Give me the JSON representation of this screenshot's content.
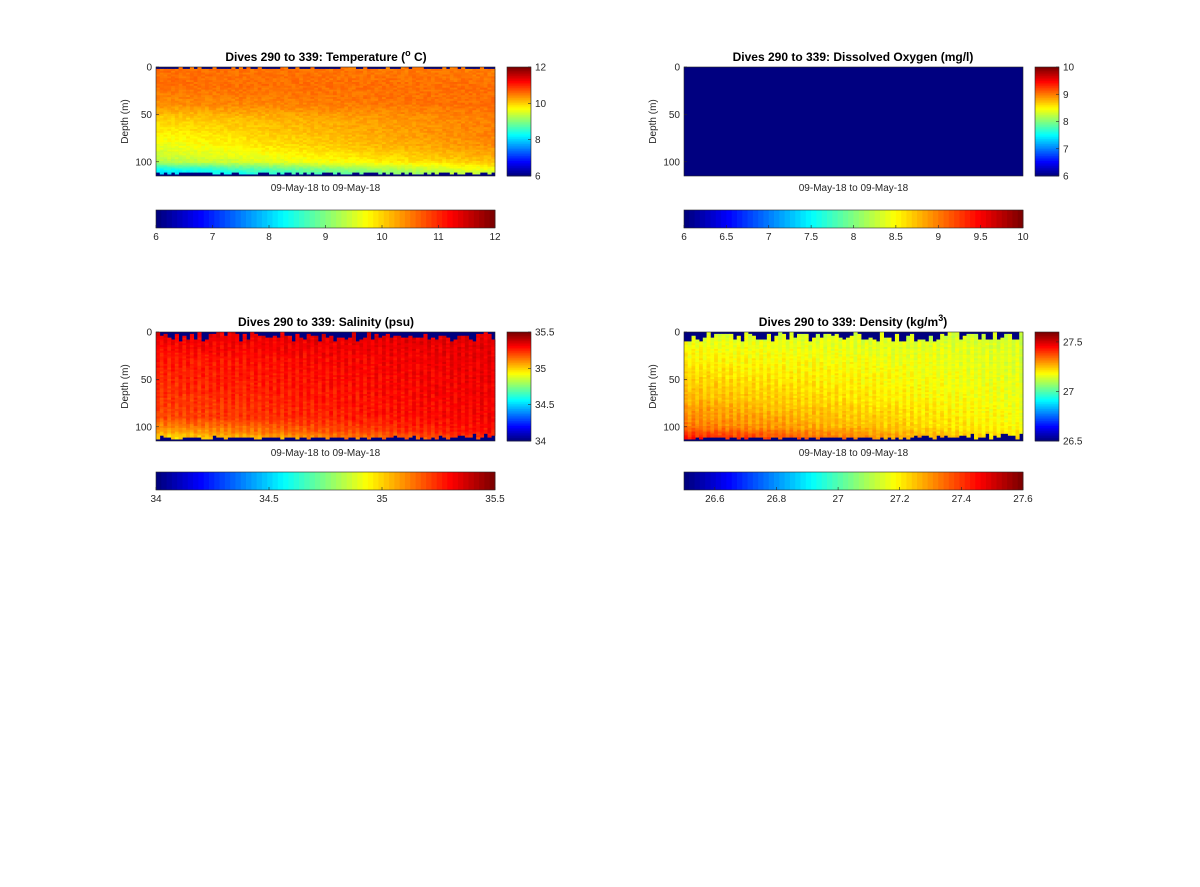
{
  "figure": {
    "background": "#ffffff",
    "colormap": "jet"
  },
  "chart_data": [
    {
      "type": "heatmap",
      "title": "Dives 290 to 339: Temperature (",
      "title_superscript": "o",
      "title_suffix": " C)",
      "xlabel": "09-May-18 to 09-May-18",
      "ylabel": "Depth (m)",
      "yticks": [
        "0",
        "50",
        "100"
      ],
      "ylim": [
        0,
        115
      ],
      "clim": [
        6,
        12
      ],
      "colorbar_ticks": [
        "6",
        "8",
        "10",
        "12"
      ],
      "hbar_ticks": [
        "6",
        "7",
        "8",
        "9",
        "10",
        "11",
        "12"
      ],
      "profile": {
        "depths": [
          0,
          20,
          40,
          55,
          70,
          85,
          100,
          108,
          115
        ],
        "early": [
          10.6,
          10.6,
          10.4,
          10.0,
          9.8,
          9.6,
          9.3,
          8.3,
          7.8
        ],
        "late": [
          10.5,
          10.6,
          10.6,
          10.5,
          10.5,
          10.4,
          10.1,
          9.7,
          9.4
        ]
      },
      "surface_gap_max_m": 3,
      "bottom_depth_max_m": 113,
      "fill_mode": "temperature"
    },
    {
      "type": "heatmap",
      "title": "Dives 290 to 339: Dissolved Oxygen (mg/l)",
      "title_superscript": "",
      "title_suffix": "",
      "xlabel": "09-May-18 to 09-May-18",
      "ylabel": "Depth (m)",
      "yticks": [
        "0",
        "50",
        "100"
      ],
      "ylim": [
        0,
        115
      ],
      "clim": [
        6,
        10
      ],
      "colorbar_ticks": [
        "6",
        "7",
        "8",
        "9",
        "10"
      ],
      "hbar_ticks": [
        "6",
        "6.5",
        "7",
        "7.5",
        "8",
        "8.5",
        "9",
        "9.5",
        "10"
      ],
      "uniform_value": 6,
      "fill_mode": "uniform"
    },
    {
      "type": "heatmap",
      "title": "Dives 290 to 339: Salinity (psu)",
      "title_superscript": "",
      "title_suffix": "",
      "xlabel": "09-May-18 to 09-May-18",
      "ylabel": "Depth (m)",
      "yticks": [
        "0",
        "50",
        "100"
      ],
      "ylim": [
        0,
        115
      ],
      "clim": [
        34,
        35.5
      ],
      "colorbar_ticks": [
        "34",
        "34.5",
        "35",
        "35.5"
      ],
      "hbar_ticks": [
        "34",
        "34.5",
        "35",
        "35.5"
      ],
      "profile": {
        "depths": [
          0,
          10,
          30,
          60,
          90,
          105,
          115
        ],
        "early": [
          35.32,
          35.3,
          35.25,
          35.22,
          35.18,
          35.05,
          34.9
        ],
        "late": [
          35.33,
          35.33,
          35.32,
          35.31,
          35.3,
          35.28,
          35.2
        ]
      },
      "surface_gap_max_m": 10,
      "bottom_depth_max_m": 113,
      "fill_mode": "striped"
    },
    {
      "type": "heatmap",
      "title": "Dives 290 to 339: Density (kg/m",
      "title_superscript": "3",
      "title_suffix": ")",
      "xlabel": "09-May-18 to 09-May-18",
      "ylabel": "Depth (m)",
      "yticks": [
        "0",
        "50",
        "100"
      ],
      "ylim": [
        0,
        115
      ],
      "clim": [
        26.5,
        27.6
      ],
      "colorbar_ticks": [
        "26.5",
        "27",
        "27.5"
      ],
      "hbar_ticks": [
        "26.6",
        "26.8",
        "27",
        "27.2",
        "27.4",
        "27.6"
      ],
      "profile": {
        "depths": [
          0,
          10,
          40,
          70,
          100,
          115
        ],
        "early": [
          27.12,
          27.15,
          27.2,
          27.25,
          27.32,
          27.45
        ],
        "late": [
          27.12,
          27.13,
          27.14,
          27.15,
          27.17,
          27.2
        ]
      },
      "surface_gap_max_m": 10,
      "bottom_depth_max_m": 113,
      "fill_mode": "striped"
    }
  ]
}
